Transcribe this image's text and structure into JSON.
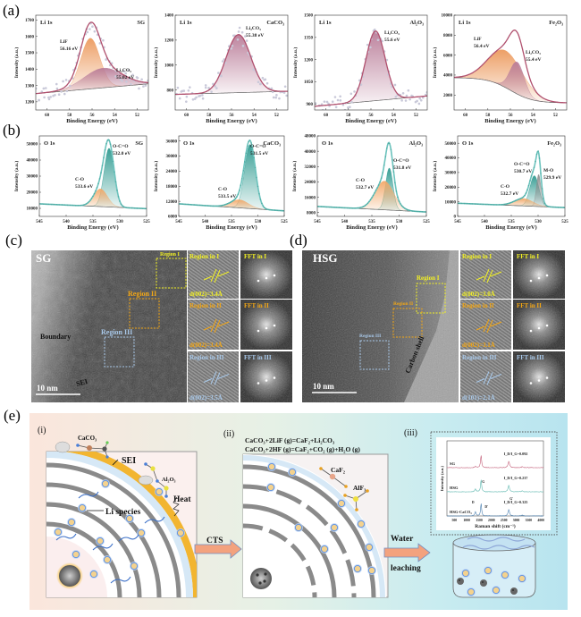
{
  "panel_labels": [
    "(a)",
    "(b)",
    "(c)",
    "(d)",
    "(e)"
  ],
  "colors": {
    "li_envelope": "#b0506e",
    "lif": "#ec9a5e",
    "li2co3": "#b97c98",
    "o_envelope": "#6cc3bd",
    "ocoo": "#2f9a90",
    "co": "#f2a868",
    "mo": "#8a8a8a",
    "region_i": "#f2f024",
    "region_ii": "#f2a614",
    "region_iii": "#a9c9ea"
  },
  "chart_data": [
    {
      "type": "line",
      "panel": "a",
      "title": "Li 1s",
      "sample": "SG",
      "xlabel": "Binding Energy (eV)",
      "ylabel": "Intensity (a.u.)",
      "xlim": [
        61,
        51
      ],
      "xticks": [
        60,
        58,
        56,
        54,
        52
      ],
      "ylim": [
        1150,
        1730
      ],
      "yticks": [
        1200,
        1300,
        1400,
        1500,
        1600,
        1700
      ],
      "background": {
        "type": "linear",
        "values": [
          1250,
          1310
        ]
      },
      "envelope_color": "li_envelope",
      "scatter": true,
      "peaks": [
        {
          "name": "LiF",
          "label": "56.16 eV",
          "center": 56.16,
          "height": 310,
          "fwhm": 2.0,
          "color": "lif"
        },
        {
          "name": "Li₂CO₃",
          "label": "55.02 eV",
          "center": 55.02,
          "height": 120,
          "fwhm": 4.0,
          "color": "li2co3"
        }
      ]
    },
    {
      "type": "line",
      "panel": "a",
      "title": "Li 1s",
      "sample": "CaCO₃",
      "xlabel": "Binding Energy (eV)",
      "ylabel": "Intensity (a.u.)",
      "xlim": [
        61,
        51
      ],
      "xticks": [
        60,
        58,
        56,
        54,
        52
      ],
      "ylim": [
        640,
        1400
      ],
      "yticks": [
        800,
        1000,
        1200,
        1400
      ],
      "background": {
        "type": "linear",
        "values": [
          765,
          790
        ]
      },
      "envelope_color": "li_envelope",
      "scatter": true,
      "peaks": [
        {
          "name": "Li₂CO₃",
          "label": "55.38 eV",
          "center": 55.38,
          "height": 465,
          "fwhm": 2.6,
          "color": "li2co3"
        }
      ]
    },
    {
      "type": "line",
      "panel": "a",
      "title": "Li 1s",
      "sample": "Al₂O₃",
      "xlabel": "Binding Energy (eV)",
      "ylabel": "Intensity (a.u.)",
      "xlim": [
        61,
        51
      ],
      "xticks": [
        60,
        58,
        56,
        54,
        52
      ],
      "ylim": [
        860,
        1500
      ],
      "yticks": [
        900,
        1050,
        1200,
        1350,
        1500
      ],
      "background": {
        "type": "linear",
        "values": [
          885,
          955
        ]
      },
      "envelope_color": "li_envelope",
      "scatter": true,
      "peaks": [
        {
          "name": "Li₂CO₃",
          "label": "55.6 eV",
          "center": 55.6,
          "height": 470,
          "fwhm": 2.0,
          "color": "li2co3"
        }
      ]
    },
    {
      "type": "line",
      "panel": "a",
      "title": "Li 1s",
      "sample": "Fe₂O₃",
      "xlabel": "Binding Energy (eV)",
      "ylabel": "Intensity (a.u.)",
      "xlim": [
        61,
        51
      ],
      "xticks": [
        60,
        58,
        56,
        54,
        52
      ],
      "ylim": [
        500,
        10000
      ],
      "yticks": [
        2000,
        4000,
        6000,
        8000,
        10000
      ],
      "background": {
        "type": "step",
        "high": 3750,
        "low": 1200,
        "center": 56.0,
        "width": 1.0
      },
      "envelope_color": "li_envelope",
      "scatter": false,
      "peaks": [
        {
          "name": "LiF",
          "label": "56.4 eV",
          "center": 56.4,
          "height": 3700,
          "fwhm": 3.6,
          "color": "lif"
        },
        {
          "name": "Li₂CO₃",
          "label": "55.4 eV",
          "center": 55.4,
          "height": 3200,
          "fwhm": 1.5,
          "color": "li2co3"
        }
      ]
    },
    {
      "type": "line",
      "panel": "b",
      "title": "O 1s",
      "sample": "SG",
      "xlabel": "Binding Energy (eV)",
      "ylabel": "Intensity (a.u.)",
      "xlim": [
        545,
        525
      ],
      "xticks": [
        545,
        540,
        535,
        530,
        525
      ],
      "ylim": [
        5000,
        55000
      ],
      "yticks": [
        10000,
        20000,
        30000,
        40000,
        50000
      ],
      "background": {
        "type": "linear",
        "values": [
          12800,
          9800
        ]
      },
      "envelope_color": "o_envelope",
      "scatter": false,
      "peaks": [
        {
          "name": "O-C=O",
          "label": "532.0 eV",
          "center": 532.0,
          "height": 36500,
          "fwhm": 2.2,
          "color": "ocoo"
        },
        {
          "name": "C-O",
          "label": "533.6 eV",
          "center": 533.6,
          "height": 11000,
          "fwhm": 3.0,
          "color": "co"
        }
      ]
    },
    {
      "type": "line",
      "panel": "b",
      "title": "O 1s",
      "sample": "CaCO₃",
      "xlabel": "Binding Energy (eV)",
      "ylabel": "Intensity (a.u.)",
      "xlim": [
        545,
        525
      ],
      "xticks": [
        545,
        540,
        535,
        530,
        525
      ],
      "ylim": [
        6000,
        38000
      ],
      "yticks": [
        6000,
        12000,
        18000,
        24000,
        30000,
        36000
      ],
      "background": {
        "type": "linear",
        "values": [
          11000,
          8200
        ]
      },
      "envelope_color": "o_envelope",
      "scatter": false,
      "peaks": [
        {
          "name": "O-C=O",
          "label": "531.5 eV",
          "center": 531.5,
          "height": 25500,
          "fwhm": 2.4,
          "color": "ocoo"
        },
        {
          "name": "C-O",
          "label": "533.5 eV",
          "center": 533.5,
          "height": 3200,
          "fwhm": 4.0,
          "color": "co"
        }
      ]
    },
    {
      "type": "line",
      "panel": "b",
      "title": "O 1s",
      "sample": "Al₂O₃",
      "xlabel": "Binding Energy (eV)",
      "ylabel": "Intensity (a.u.)",
      "xlim": [
        545,
        525
      ],
      "xticks": [
        545,
        540,
        535,
        530,
        525
      ],
      "ylim": [
        6000,
        48000
      ],
      "yticks": [
        8000,
        16000,
        24000,
        32000,
        40000,
        48000
      ],
      "background": {
        "type": "linear",
        "values": [
          11200,
          8300
        ]
      },
      "envelope_color": "o_envelope",
      "scatter": false,
      "peaks": [
        {
          "name": "O-C=O",
          "label": "531.8 eV",
          "center": 531.8,
          "height": 22000,
          "fwhm": 1.6,
          "color": "ocoo"
        },
        {
          "name": "C-O",
          "label": "532.7 eV",
          "center": 532.7,
          "height": 15000,
          "fwhm": 4.0,
          "color": "co"
        }
      ]
    },
    {
      "type": "line",
      "panel": "b",
      "title": "O 1s",
      "sample": "Fe₂O₃",
      "xlabel": "Binding Energy (eV)",
      "ylabel": "Intensity (a.u.)",
      "xlim": [
        545,
        525
      ],
      "xticks": [
        545,
        540,
        535,
        530,
        525
      ],
      "ylim": [
        0,
        55000
      ],
      "yticks": [
        0,
        10000,
        20000,
        30000,
        40000,
        50000
      ],
      "background": {
        "type": "linear",
        "values": [
          9000,
          6000
        ]
      },
      "envelope_color": "o_envelope",
      "scatter": false,
      "peaks": [
        {
          "name": "O-C=O",
          "label": "530.7 eV",
          "center": 530.7,
          "height": 21000,
          "fwhm": 2.0,
          "color": "ocoo"
        },
        {
          "name": "M-O",
          "label": "529.9 eV",
          "center": 529.9,
          "height": 22000,
          "fwhm": 1.0,
          "color": "mo"
        },
        {
          "name": "C-O",
          "label": "532.7 eV",
          "center": 532.7,
          "height": 5000,
          "fwhm": 4.0,
          "color": "co"
        }
      ]
    },
    {
      "type": "line",
      "panel": "e-iii",
      "xlabel": "Raman shift (cm⁻¹)",
      "ylabel": "Intensity (a.u.)",
      "xlim": [
        200,
        4100
      ],
      "xticks": [
        500,
        1000,
        1500,
        2000,
        2500,
        3000,
        3500,
        4000
      ],
      "band_labels": {
        "D": 1350,
        "G": 1580,
        "D'": 1620,
        "G'": 2700
      },
      "series": [
        {
          "name": "SG",
          "ratio_label": "I_D/I_G=0.092",
          "id_ig": 0.092,
          "color": "#c4607a"
        },
        {
          "name": "HSG",
          "ratio_label": "I_D/I_G=0.237",
          "id_ig": 0.237,
          "color": "#5fb8b0"
        },
        {
          "name": "HSG-CaCO₃",
          "ratio_label": "I_D/I_G=0.325",
          "id_ig": 0.325,
          "color": "#4a7fb0"
        }
      ]
    }
  ],
  "tem_c": {
    "sample": "SG",
    "regions": [
      "Region I",
      "Region II",
      "Region III"
    ],
    "boundary": "Boundary",
    "sei": "SEI",
    "scale": "10 nm",
    "insets": [
      {
        "region": "Region in I",
        "fft": "FFT in I",
        "d": "d(002)=3.4Å"
      },
      {
        "region": "Region in II",
        "fft": "FFT in II",
        "d": "d(002)=3.4Å"
      },
      {
        "region": "Region in III",
        "fft": "FFT in III",
        "d": "d(002)=3.5Å"
      }
    ]
  },
  "tem_d": {
    "sample": "HSG",
    "regions": [
      "Region I",
      "Region II",
      "Region III"
    ],
    "shell": "Carbon shell",
    "scale": "10 nm",
    "insets": [
      {
        "region": "Region in I",
        "fft": "FFT in I",
        "d": "d(002)=3.0Å"
      },
      {
        "region": "Region in II",
        "fft": "FFT in II",
        "d": "d(002)=3.1Å"
      },
      {
        "region": "Region in III",
        "fft": "FFT in III",
        "d": "d(101)=2.1Å"
      }
    ]
  },
  "schematic": {
    "step_i": "(i)",
    "step_ii": "(ii)",
    "step_iii": "(iii)",
    "caco3": "CaCO₃",
    "sei": "SEI",
    "al2o3": "Al₂O₃",
    "heat": "Heat",
    "li_species": "Li species",
    "cts": "CTS",
    "eq1": "CaCO₃+2LiF (g)=CaF₂+Li₂CO₃",
    "eq2": "CaCO₃+2HF (g)=CaF₂+CO₂ (g)+H₂O (g)",
    "caf2": "CaF₂",
    "alf3": "AlF₃",
    "water": "Water",
    "leaching": "leaching"
  }
}
